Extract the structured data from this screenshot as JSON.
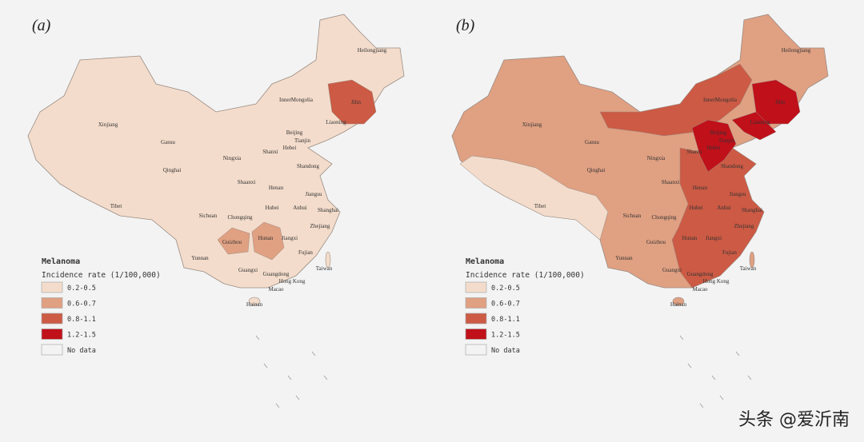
{
  "colors": {
    "c1": "#f3dccb",
    "c2": "#e0a082",
    "c3": "#cc5a44",
    "c4": "#c0101a",
    "nodata": "#f3f3f3",
    "border": "#9a8c84",
    "background": "#f3f3f3"
  },
  "legend": {
    "title": "Melanoma",
    "subtitle": "Incidence rate (1/100,000)",
    "items": [
      {
        "label": "0.2-0.5",
        "color": "#f3dccb"
      },
      {
        "label": "0.6-0.7",
        "color": "#e0a082"
      },
      {
        "label": "0.8-1.1",
        "color": "#cc5a44"
      },
      {
        "label": "1.2-1.5",
        "color": "#c0101a"
      },
      {
        "label": "No data",
        "color": "#f3f3f3"
      }
    ]
  },
  "provinces": [
    "Heilongjiang",
    "InnerMongolia",
    "Jilin",
    "Liaoning",
    "Xinjiang",
    "Gansu",
    "Beijing",
    "Tianjin",
    "Hebei",
    "Shanxi",
    "Ningxia",
    "Shandong",
    "Qinghai",
    "Shaanxi",
    "Henan",
    "Jiangsu",
    "Tibet",
    "Anhui",
    "Hubei",
    "Shanghai",
    "Sichuan",
    "Chongqing",
    "Zhejiang",
    "Hunan",
    "Jiangxi",
    "Guizhou",
    "Fujian",
    "Yunnan",
    "Taiwan",
    "Guangxi",
    "Guangdong",
    "Hong Kong",
    "Macao",
    "Hainan"
  ],
  "maps": [
    {
      "panel": "(a)",
      "base": "0.2-0.5",
      "highlights": {
        "Jilin": "0.8-1.1",
        "Guizhou": "0.6-0.7",
        "Hunan": "0.6-0.7"
      }
    },
    {
      "panel": "(b)",
      "base": "0.6-0.7",
      "highlights": {
        "Tibet": "0.2-0.5",
        "InnerMongolia": "0.8-1.1",
        "East coast": "0.8-1.1",
        "Jilin": "1.2-1.5",
        "Liaoning": "1.2-1.5",
        "Beijing": "1.2-1.5",
        "Tianjin": "1.2-1.5",
        "Hebei": "1.2-1.5"
      }
    }
  ],
  "watermark": "头条 @爱沂南"
}
